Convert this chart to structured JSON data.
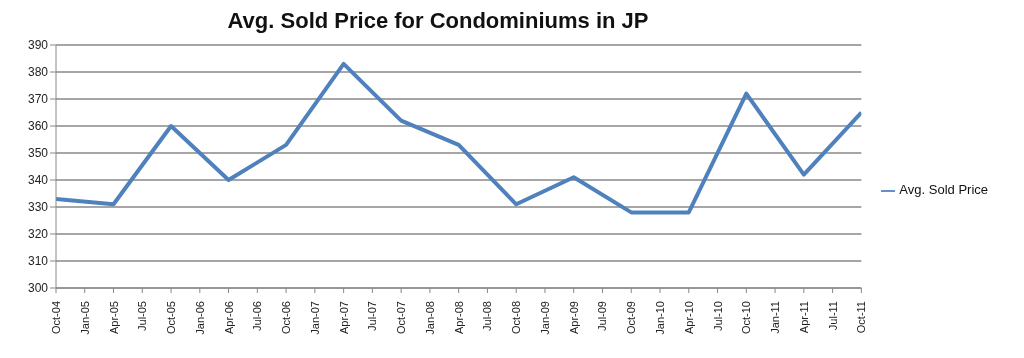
{
  "chart_data": {
    "type": "line",
    "title": "Avg. Sold Price for Condominiums in JP",
    "x": [
      "2004-10",
      "2005-04",
      "2005-10",
      "2006-04",
      "2006-10",
      "2007-04",
      "2007-10",
      "2008-04",
      "2008-10",
      "2009-04",
      "2009-10",
      "2010-04",
      "2010-10",
      "2011-04",
      "2011-10"
    ],
    "series": [
      {
        "name": "Avg. Sold Price",
        "color": "#4f81bd",
        "values": [
          333,
          331,
          360,
          340,
          353,
          383,
          362,
          353,
          331,
          341,
          328,
          328,
          372,
          342,
          365
        ]
      }
    ],
    "xlim": [
      "2004-10",
      "2011-10"
    ],
    "xticks": [
      {
        "value": "2004-10",
        "label": "Oct-04"
      },
      {
        "value": "2005-01",
        "label": "Jan-05"
      },
      {
        "value": "2005-04",
        "label": "Apr-05"
      },
      {
        "value": "2005-07",
        "label": "Jul-05"
      },
      {
        "value": "2005-10",
        "label": "Oct-05"
      },
      {
        "value": "2006-01",
        "label": "Jan-06"
      },
      {
        "value": "2006-04",
        "label": "Apr-06"
      },
      {
        "value": "2006-07",
        "label": "Jul-06"
      },
      {
        "value": "2006-10",
        "label": "Oct-06"
      },
      {
        "value": "2007-01",
        "label": "Jan-07"
      },
      {
        "value": "2007-04",
        "label": "Apr-07"
      },
      {
        "value": "2007-07",
        "label": "Jul-07"
      },
      {
        "value": "2007-10",
        "label": "Oct-07"
      },
      {
        "value": "2008-01",
        "label": "Jan-08"
      },
      {
        "value": "2008-04",
        "label": "Apr-08"
      },
      {
        "value": "2008-07",
        "label": "Jul-08"
      },
      {
        "value": "2008-10",
        "label": "Oct-08"
      },
      {
        "value": "2009-01",
        "label": "Jan-09"
      },
      {
        "value": "2009-04",
        "label": "Apr-09"
      },
      {
        "value": "2009-07",
        "label": "Jul-09"
      },
      {
        "value": "2009-10",
        "label": "Oct-09"
      },
      {
        "value": "2010-01",
        "label": "Jan-10"
      },
      {
        "value": "2010-04",
        "label": "Apr-10"
      },
      {
        "value": "2010-07",
        "label": "Jul-10"
      },
      {
        "value": "2010-10",
        "label": "Oct-10"
      },
      {
        "value": "2011-01",
        "label": "Jan-11"
      },
      {
        "value": "2011-04",
        "label": "Apr-11"
      },
      {
        "value": "2011-07",
        "label": "Jul-11"
      },
      {
        "value": "2011-10",
        "label": "Oct-11"
      }
    ],
    "ylim": [
      300,
      390
    ],
    "yticks": [
      300,
      310,
      320,
      330,
      340,
      350,
      360,
      370,
      380,
      390
    ],
    "grid": "y",
    "legend": "right",
    "marker": "none",
    "line_style": "solid"
  }
}
